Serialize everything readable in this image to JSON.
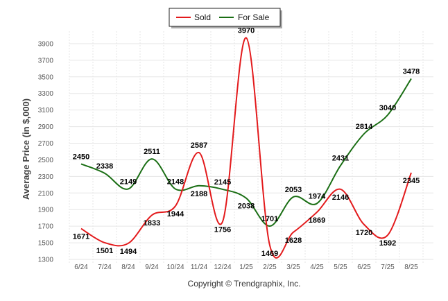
{
  "chart_data": {
    "type": "line",
    "categories": [
      "6/24",
      "7/24",
      "8/24",
      "9/24",
      "10/24",
      "11/24",
      "12/24",
      "1/25",
      "2/25",
      "3/25",
      "4/25",
      "5/25",
      "6/25",
      "7/25",
      "8/25"
    ],
    "series": [
      {
        "name": "Sold",
        "color": "#e31a1c",
        "values": [
          1671,
          1501,
          1494,
          1833,
          1944,
          2587,
          1756,
          3970,
          1469,
          1628,
          1869,
          2146,
          1720,
          1592,
          2345
        ]
      },
      {
        "name": "For Sale",
        "color": "#1a6e14",
        "values": [
          2450,
          2338,
          2149,
          2511,
          2148,
          2188,
          2145,
          2038,
          1701,
          2053,
          1974,
          2431,
          2814,
          3040,
          3478
        ]
      }
    ],
    "ylabel": "Average Price (in $,000)",
    "xlabel": "",
    "yticks": [
      1300,
      1500,
      1700,
      1900,
      2100,
      2300,
      2500,
      2700,
      2900,
      3100,
      3300,
      3500,
      3700,
      3900
    ],
    "ylim": [
      1250,
      4050
    ],
    "grid": true,
    "legend": "top-center",
    "smooth": true
  },
  "footer": {
    "copyright": "Copyright © Trendgraphix, Inc."
  }
}
